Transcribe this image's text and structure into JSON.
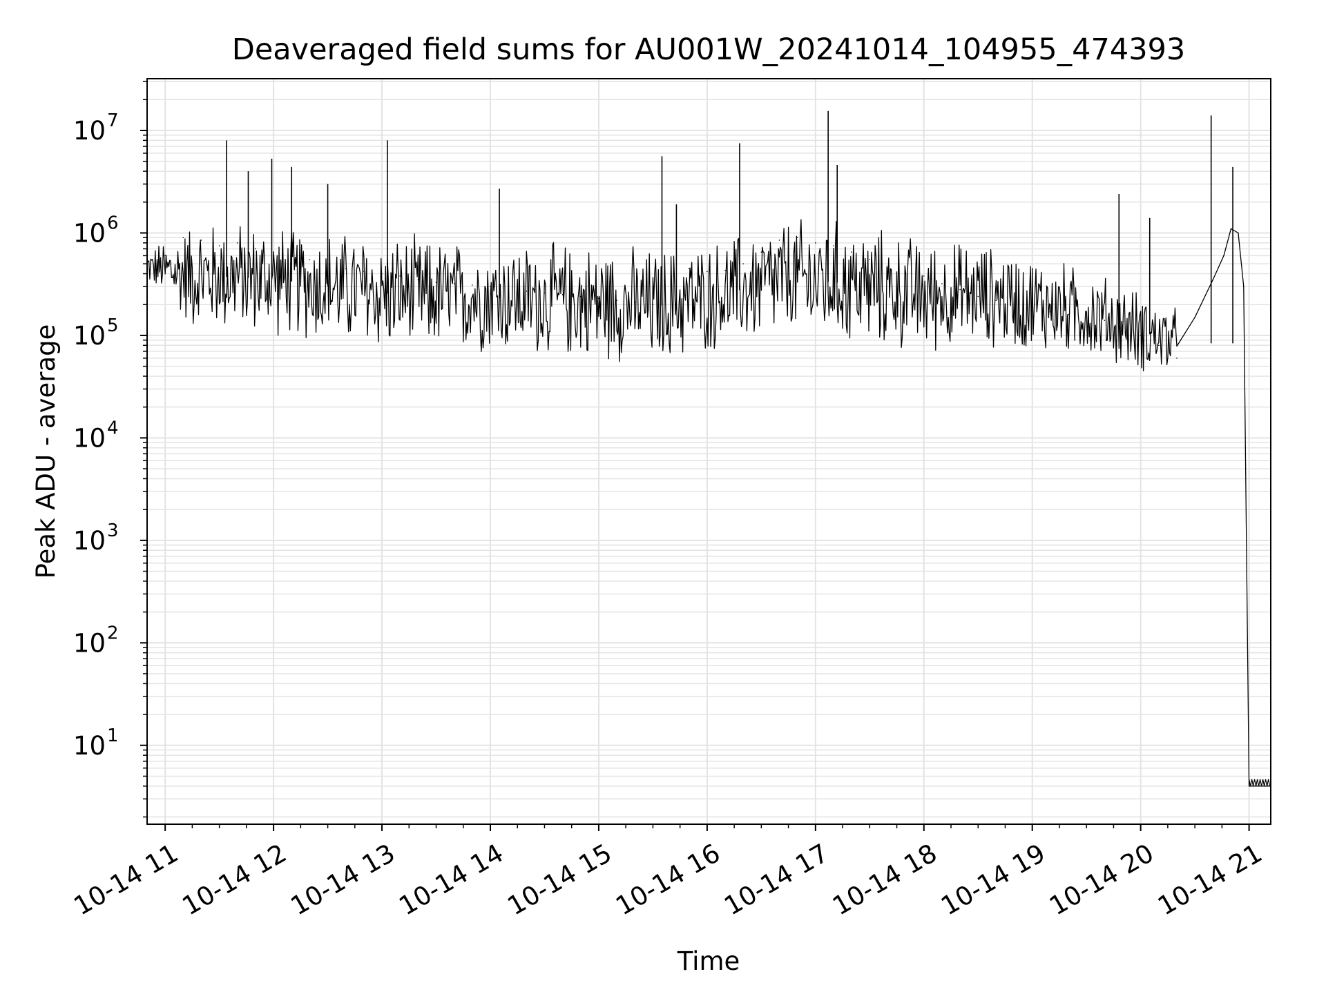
{
  "chart_data": {
    "type": "line",
    "title": "Deaveraged field sums for AU001W_20241014_104955_474393",
    "xlabel": "Time",
    "ylabel": "Peak ADU - average",
    "yscale": "log",
    "ylim": [
      1.7,
      32000000
    ],
    "xlim": [
      "2024-10-14 10:50",
      "2024-10-14 21:12"
    ],
    "grid": true,
    "line_color": "#000000",
    "x_ticks": [
      {
        "time": "2024-10-14 11:00",
        "label": "10-14 11"
      },
      {
        "time": "2024-10-14 12:00",
        "label": "10-14 12"
      },
      {
        "time": "2024-10-14 13:00",
        "label": "10-14 13"
      },
      {
        "time": "2024-10-14 14:00",
        "label": "10-14 14"
      },
      {
        "time": "2024-10-14 15:00",
        "label": "10-14 15"
      },
      {
        "time": "2024-10-14 16:00",
        "label": "10-14 16"
      },
      {
        "time": "2024-10-14 17:00",
        "label": "10-14 17"
      },
      {
        "time": "2024-10-14 18:00",
        "label": "10-14 18"
      },
      {
        "time": "2024-10-14 19:00",
        "label": "10-14 19"
      },
      {
        "time": "2024-10-14 20:00",
        "label": "10-14 20"
      },
      {
        "time": "2024-10-14 21:00",
        "label": "10-14 21"
      }
    ],
    "y_ticks": [
      {
        "value": 10,
        "base": "10",
        "exp": "1"
      },
      {
        "value": 100,
        "base": "10",
        "exp": "2"
      },
      {
        "value": 1000,
        "base": "10",
        "exp": "3"
      },
      {
        "value": 10000,
        "base": "10",
        "exp": "4"
      },
      {
        "value": 100000,
        "base": "10",
        "exp": "5"
      },
      {
        "value": 1000000,
        "base": "10",
        "exp": "6"
      },
      {
        "value": 10000000,
        "base": "10",
        "exp": "7"
      }
    ],
    "series": [
      {
        "x": [
          "2024-10-14 10:50",
          "2024-10-14 11:00",
          "2024-10-14 11:10",
          "2024-10-14 11:20",
          "2024-10-14 11:30",
          "2024-10-14 11:40",
          "2024-10-14 11:50",
          "2024-10-14 12:00",
          "2024-10-14 12:10",
          "2024-10-14 12:20",
          "2024-10-14 12:30",
          "2024-10-14 12:40",
          "2024-10-14 12:50",
          "2024-10-14 13:00",
          "2024-10-14 13:10",
          "2024-10-14 13:20",
          "2024-10-14 13:30",
          "2024-10-14 13:40",
          "2024-10-14 13:50",
          "2024-10-14 14:00",
          "2024-10-14 14:10",
          "2024-10-14 14:20",
          "2024-10-14 14:30",
          "2024-10-14 14:40",
          "2024-10-14 14:50",
          "2024-10-14 15:00",
          "2024-10-14 15:10",
          "2024-10-14 15:20",
          "2024-10-14 15:30",
          "2024-10-14 15:40",
          "2024-10-14 15:50",
          "2024-10-14 16:00",
          "2024-10-14 16:10",
          "2024-10-14 16:20",
          "2024-10-14 16:30",
          "2024-10-14 16:40",
          "2024-10-14 16:50",
          "2024-10-14 17:00",
          "2024-10-14 17:10",
          "2024-10-14 17:20",
          "2024-10-14 17:30",
          "2024-10-14 17:40",
          "2024-10-14 17:50",
          "2024-10-14 18:00",
          "2024-10-14 18:10",
          "2024-10-14 18:20",
          "2024-10-14 18:30",
          "2024-10-14 18:40",
          "2024-10-14 18:50",
          "2024-10-14 19:00",
          "2024-10-14 19:10",
          "2024-10-14 19:20",
          "2024-10-14 19:30",
          "2024-10-14 19:40",
          "2024-10-14 19:50",
          "2024-10-14 20:00",
          "2024-10-14 20:10",
          "2024-10-14 20:20",
          "2024-10-14 20:30",
          "2024-10-14 20:40",
          "2024-10-14 20:46",
          "2024-10-14 20:50",
          "2024-10-14 20:54",
          "2024-10-14 20:57",
          "2024-10-14 21:00",
          "2024-10-14 21:12"
        ],
        "y": [
          450000,
          600000,
          900000,
          850000,
          750000,
          800000,
          700000,
          650000,
          600000,
          550000,
          500000,
          450000,
          420000,
          400000,
          380000,
          350000,
          330000,
          320000,
          310000,
          300000,
          280000,
          270000,
          260000,
          250000,
          240000,
          230000,
          220000,
          210000,
          200000,
          400000,
          450000,
          420000,
          430000,
          500000,
          650000,
          850000,
          900000,
          800000,
          750000,
          650000,
          550000,
          450000,
          400000,
          380000,
          320000,
          280000,
          240000,
          220000,
          200000,
          190000,
          170000,
          160000,
          150000,
          140000,
          120000,
          100000,
          80000,
          60000,
          150000,
          350000,
          600000,
          1100000,
          1000000,
          300000,
          4,
          4
        ],
        "spikes": [
          {
            "x": "2024-10-14 11:34",
            "y": 8000000
          },
          {
            "x": "2024-10-14 11:46",
            "y": 4000000
          },
          {
            "x": "2024-10-14 11:59",
            "y": 5300000
          },
          {
            "x": "2024-10-14 12:10",
            "y": 4400000
          },
          {
            "x": "2024-10-14 12:30",
            "y": 3000000
          },
          {
            "x": "2024-10-14 13:03",
            "y": 8000000
          },
          {
            "x": "2024-10-14 14:05",
            "y": 2700000
          },
          {
            "x": "2024-10-14 15:35",
            "y": 5600000
          },
          {
            "x": "2024-10-14 15:43",
            "y": 1900000
          },
          {
            "x": "2024-10-14 16:18",
            "y": 7500000
          },
          {
            "x": "2024-10-14 17:07",
            "y": 15500000
          },
          {
            "x": "2024-10-14 17:12",
            "y": 4600000
          },
          {
            "x": "2024-10-14 19:48",
            "y": 2400000
          },
          {
            "x": "2024-10-14 20:05",
            "y": 1400000
          },
          {
            "x": "2024-10-14 20:39",
            "y": 14000000
          },
          {
            "x": "2024-10-14 20:51",
            "y": 4400000
          }
        ],
        "envelope": [
          {
            "x": "2024-10-14 10:50",
            "low": 320000,
            "high": 700000
          },
          {
            "x": "2024-10-14 11:15",
            "low": 100000,
            "high": 1500000
          },
          {
            "x": "2024-10-14 12:00",
            "low": 90000,
            "high": 1400000
          },
          {
            "x": "2024-10-14 13:00",
            "low": 60000,
            "high": 1100000
          },
          {
            "x": "2024-10-14 14:00",
            "low": 60000,
            "high": 900000
          },
          {
            "x": "2024-10-14 15:00",
            "low": 50000,
            "high": 900000
          },
          {
            "x": "2024-10-14 15:30",
            "low": 45000,
            "high": 800000
          },
          {
            "x": "2024-10-14 16:00",
            "low": 60000,
            "high": 900000
          },
          {
            "x": "2024-10-14 16:45",
            "low": 80000,
            "high": 1600000
          },
          {
            "x": "2024-10-14 17:15",
            "low": 70000,
            "high": 1500000
          },
          {
            "x": "2024-10-14 18:00",
            "low": 60000,
            "high": 1000000
          },
          {
            "x": "2024-10-14 18:30",
            "low": 70000,
            "high": 900000
          },
          {
            "x": "2024-10-14 19:00",
            "low": 60000,
            "high": 700000
          },
          {
            "x": "2024-10-14 19:30",
            "low": 55000,
            "high": 500000
          },
          {
            "x": "2024-10-14 20:00",
            "low": 40000,
            "high": 300000
          },
          {
            "x": "2024-10-14 20:20",
            "low": 35000,
            "high": 200000
          }
        ]
      }
    ]
  }
}
